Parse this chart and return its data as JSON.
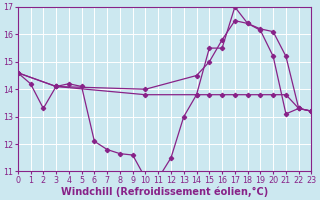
{
  "background_color": "#cce8f0",
  "line_color": "#882288",
  "grid_color": "#ffffff",
  "xlabel": "Windchill (Refroidissement éolien,°C)",
  "xlabel_fontsize": 7.0,
  "xlim": [
    0,
    23
  ],
  "ylim": [
    11,
    17
  ],
  "yticks": [
    11,
    12,
    13,
    14,
    15,
    16,
    17
  ],
  "xticks": [
    0,
    1,
    2,
    3,
    4,
    5,
    6,
    7,
    8,
    9,
    10,
    11,
    12,
    13,
    14,
    15,
    16,
    17,
    18,
    19,
    20,
    21,
    22,
    23
  ],
  "curve1_x": [
    0,
    1,
    2,
    3,
    4,
    5,
    6,
    7,
    8,
    9,
    10,
    11,
    12,
    13,
    14,
    15,
    16,
    17,
    18,
    19,
    20,
    21,
    22,
    23
  ],
  "curve1_y": [
    14.6,
    14.2,
    13.3,
    14.1,
    14.2,
    14.1,
    12.1,
    11.8,
    11.65,
    11.6,
    10.75,
    10.75,
    11.5,
    13.0,
    13.8,
    15.5,
    15.5,
    17.0,
    16.4,
    16.15,
    15.2,
    13.1,
    13.3,
    13.2
  ],
  "curve2_x": [
    0,
    3,
    10,
    14,
    15,
    16,
    17,
    18,
    19,
    20,
    21,
    22,
    23
  ],
  "curve2_y": [
    14.6,
    14.1,
    13.8,
    13.8,
    13.8,
    13.8,
    13.8,
    13.8,
    13.8,
    13.8,
    13.8,
    13.3,
    13.2
  ],
  "curve3_x": [
    0,
    3,
    10,
    14,
    15,
    16,
    17,
    18,
    19,
    20,
    21,
    22,
    23
  ],
  "curve3_y": [
    14.6,
    14.1,
    14.0,
    14.5,
    15.0,
    15.8,
    16.5,
    16.4,
    16.2,
    16.1,
    15.2,
    13.3,
    13.2
  ],
  "marker": "D",
  "markersize": 2.2,
  "linewidth": 0.9,
  "tick_fontsize": 5.8,
  "tick_color": "#882288"
}
